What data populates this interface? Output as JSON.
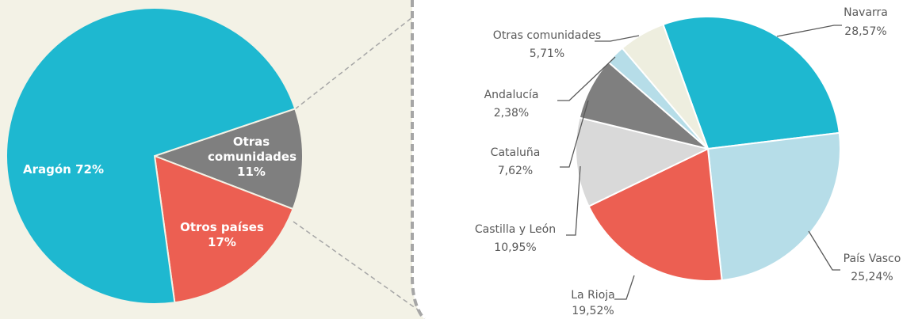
{
  "chart_data": [
    {
      "type": "pie",
      "categories": [
        "Otras comunidades",
        "Otros países",
        "Aragón"
      ],
      "values": [
        11,
        17,
        72
      ],
      "value_labels": [
        "11%",
        "17%",
        "72%"
      ],
      "colors": [
        "#7f7f7f",
        "#ec5f52",
        "#1eb8d0"
      ]
    },
    {
      "type": "pie",
      "categories": [
        "Navarra",
        "País Vasco",
        "La Rioja",
        "Castilla y León",
        "Cataluña",
        "Andalucía",
        "Otras comunidades"
      ],
      "values": [
        28.57,
        25.24,
        19.52,
        10.95,
        7.62,
        2.38,
        5.71
      ],
      "value_labels": [
        "28,57%",
        "25,24%",
        "19,52%",
        "10,95%",
        "7,62%",
        "2,38%",
        "5,71%"
      ],
      "colors": [
        "#1eb8d0",
        "#b6dde8",
        "#ec5f52",
        "#d9d9d9",
        "#7f7f7f",
        "#b6dde8",
        "#eeeedf"
      ]
    }
  ]
}
